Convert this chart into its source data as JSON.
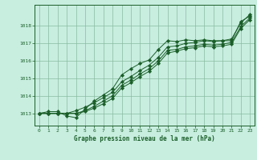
{
  "title": "Graphe pression niveau de la mer (hPa)",
  "bg_color": "#c8eee0",
  "grid_color": "#88bba0",
  "line_color": "#1a5e28",
  "marker_color": "#1a5e28",
  "xlim": [
    -0.5,
    23.5
  ],
  "ylim": [
    1012.3,
    1019.2
  ],
  "yticks": [
    1013,
    1014,
    1015,
    1016,
    1017,
    1018
  ],
  "xticks": [
    0,
    1,
    2,
    3,
    4,
    5,
    6,
    7,
    8,
    9,
    10,
    11,
    12,
    13,
    14,
    15,
    16,
    17,
    18,
    19,
    20,
    21,
    22,
    23
  ],
  "series": [
    [
      1013.0,
      1013.1,
      1013.1,
      1012.85,
      1012.75,
      1013.25,
      1013.7,
      1014.05,
      1014.4,
      1015.2,
      1015.55,
      1015.85,
      1016.05,
      1016.65,
      1017.15,
      1017.1,
      1017.2,
      1017.15,
      1017.2,
      1017.15,
      1017.15,
      1017.15,
      1018.25,
      1018.55
    ],
    [
      1013.0,
      1013.0,
      1013.0,
      1013.0,
      1013.0,
      1013.1,
      1013.3,
      1013.55,
      1013.85,
      1014.45,
      1014.75,
      1015.1,
      1015.4,
      1015.85,
      1016.45,
      1016.55,
      1016.7,
      1016.75,
      1016.85,
      1016.8,
      1016.85,
      1016.95,
      1017.85,
      1018.35
    ],
    [
      1013.0,
      1013.0,
      1013.0,
      1013.0,
      1013.0,
      1013.15,
      1013.4,
      1013.7,
      1014.0,
      1014.6,
      1014.9,
      1015.25,
      1015.55,
      1016.0,
      1016.6,
      1016.65,
      1016.8,
      1016.85,
      1016.95,
      1016.9,
      1016.95,
      1017.05,
      1017.95,
      1018.45
    ],
    [
      1013.0,
      1013.0,
      1013.0,
      1013.0,
      1013.15,
      1013.35,
      1013.6,
      1013.9,
      1014.2,
      1014.8,
      1015.1,
      1015.45,
      1015.75,
      1016.2,
      1016.8,
      1016.85,
      1017.0,
      1017.05,
      1017.15,
      1017.1,
      1017.15,
      1017.25,
      1018.15,
      1018.65
    ]
  ]
}
